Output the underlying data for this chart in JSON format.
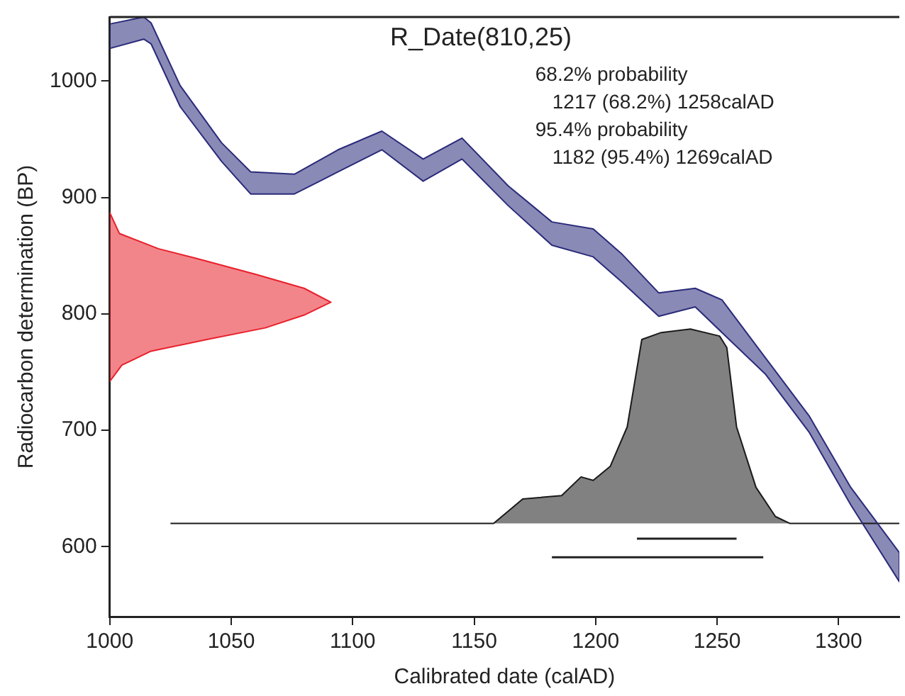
{
  "chart_data": {
    "type": "line",
    "title": "R_Date(810,25)",
    "xlabel": "Calibrated date (calAD)",
    "ylabel": "Radiocarbon determination (BP)",
    "annotations": [
      "68.2% probability",
      "1217 (68.2%) 1258calAD",
      "95.4% probability",
      "1182 (95.4%) 1269calAD"
    ],
    "xlim": [
      1000,
      1325
    ],
    "ylim": [
      540,
      1055
    ],
    "xticks": [
      1000,
      1050,
      1100,
      1150,
      1200,
      1250,
      1300
    ],
    "yticks": [
      600,
      700,
      800,
      900,
      1000
    ],
    "grid": false,
    "legend": false,
    "marker": "none",
    "series": [
      {
        "type": "area",
        "color": "#2a2a7a",
        "x": [
          1000,
          1014,
          1017,
          1029,
          1046,
          1058,
          1076,
          1094,
          1112,
          1129,
          1145,
          1164,
          1182,
          1199,
          1211,
          1226,
          1241,
          1252,
          1270,
          1288,
          1305,
          1325,
          1325,
          1305,
          1288,
          1270,
          1252,
          1241,
          1226,
          1211,
          1199,
          1182,
          1164,
          1145,
          1129,
          1112,
          1094,
          1076,
          1058,
          1046,
          1029,
          1017,
          1014,
          1000
        ],
        "values": [
          1049,
          1055,
          1050,
          996,
          947,
          922,
          920,
          941,
          957,
          933,
          951,
          910,
          879,
          873,
          851,
          818,
          822,
          812,
          762,
          712,
          651,
          595,
          570,
          636,
          698,
          748,
          784,
          806,
          798,
          827,
          849,
          859,
          893,
          933,
          914,
          941,
          922,
          903,
          903,
          931,
          978,
          1032,
          1036,
          1028
        ]
      },
      {
        "type": "area",
        "color": "#e8202a",
        "x": [
          1000,
          1004,
          1020,
          1035,
          1060,
          1080,
          1091,
          1080,
          1064,
          1040,
          1017,
          1005,
          1000
        ],
        "values": [
          887,
          869,
          856,
          848,
          834,
          822,
          810,
          799,
          788,
          778,
          768,
          756,
          742
        ]
      },
      {
        "type": "area",
        "color": "#1a1a1a",
        "x": [
          1025,
          1158,
          1170,
          1186,
          1194,
          1199,
          1206,
          1213,
          1219,
          1227,
          1239,
          1251,
          1254,
          1258,
          1266,
          1274,
          1280,
          1325
        ],
        "values": [
          620,
          620,
          641,
          644,
          660,
          657,
          669,
          703,
          778,
          784,
          787,
          781,
          771,
          703,
          651,
          626,
          620,
          620
        ]
      },
      {
        "color": "#222222",
        "x": [
          1217,
          1258
        ],
        "values": [
          607,
          607
        ]
      },
      {
        "color": "#222222",
        "x": [
          1182,
          1269
        ],
        "values": [
          591,
          591
        ]
      }
    ]
  }
}
